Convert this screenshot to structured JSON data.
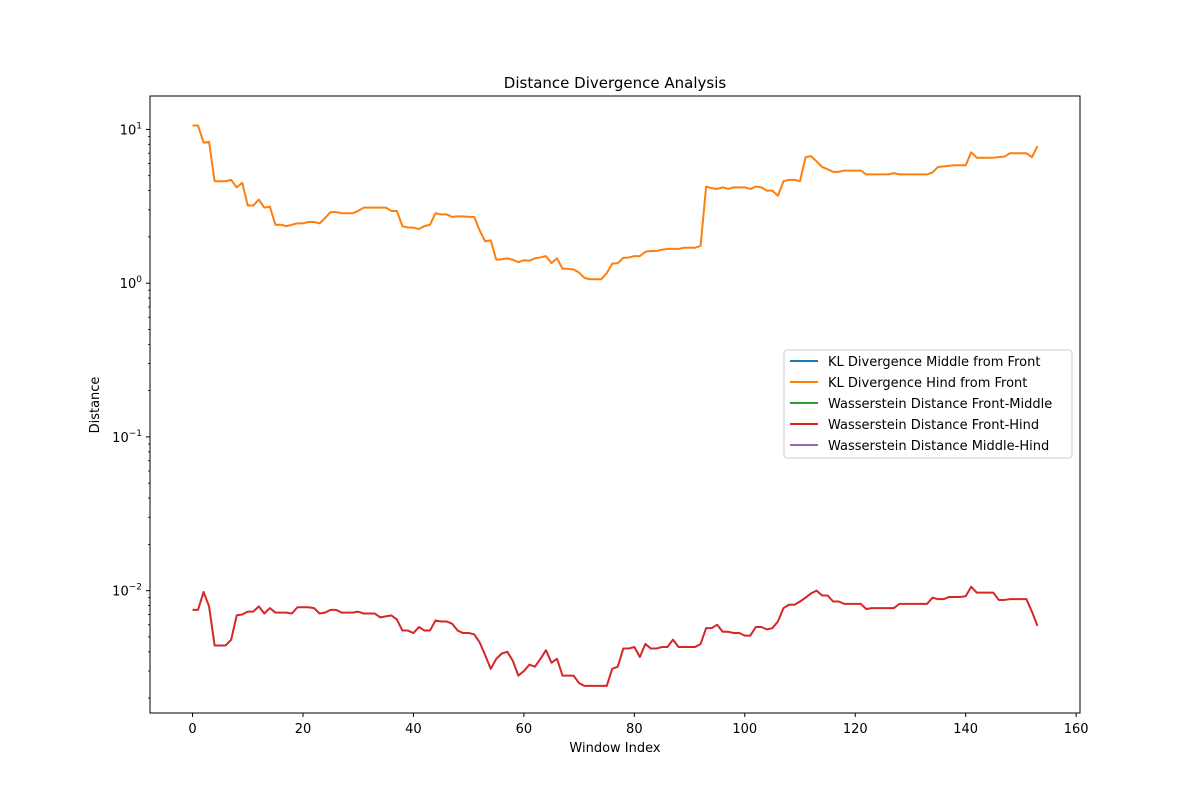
{
  "chart_data": {
    "type": "line",
    "title": "Distance Divergence Analysis",
    "xlabel": "Window Index",
    "ylabel": "Distance",
    "yscale": "log",
    "xlim": [
      -7.7,
      160.7
    ],
    "ylim": [
      0.0016,
      16.5
    ],
    "xticks": [
      0,
      20,
      40,
      60,
      80,
      100,
      120,
      140,
      160
    ],
    "yticks": [
      {
        "value": 0.01,
        "base": "10",
        "exp": "−2"
      },
      {
        "value": 0.1,
        "base": "10",
        "exp": "−1"
      },
      {
        "value": 1,
        "base": "10",
        "exp": "0"
      },
      {
        "value": 10,
        "base": "10",
        "exp": "1"
      }
    ],
    "grid": false,
    "legend_position": "center-right",
    "series": [
      {
        "name": "KL Divergence Middle from Front",
        "color": "#1f77b4",
        "x": [],
        "y": []
      },
      {
        "name": "KL Divergence Hind from Front",
        "color": "#ff7f0e",
        "x": [
          0,
          1,
          2,
          3,
          4,
          5,
          6,
          7,
          8,
          9,
          10,
          11,
          12,
          13,
          14,
          15,
          16,
          17,
          18,
          19,
          20,
          21,
          22,
          23,
          24,
          25,
          26,
          27,
          28,
          29,
          30,
          31,
          32,
          33,
          34,
          35,
          36,
          37,
          38,
          39,
          40,
          41,
          42,
          43,
          44,
          45,
          46,
          47,
          48,
          49,
          50,
          51,
          52,
          53,
          54,
          55,
          56,
          57,
          58,
          59,
          60,
          61,
          62,
          63,
          64,
          65,
          66,
          67,
          68,
          69,
          70,
          71,
          72,
          73,
          74,
          75,
          76,
          77,
          78,
          79,
          80,
          81,
          82,
          83,
          84,
          85,
          86,
          87,
          88,
          89,
          90,
          91,
          92,
          93,
          94,
          95,
          96,
          97,
          98,
          99,
          100,
          101,
          102,
          103,
          104,
          105,
          106,
          107,
          108,
          109,
          110,
          111,
          112,
          113,
          114,
          115,
          116,
          117,
          118,
          119,
          120,
          121,
          122,
          123,
          124,
          125,
          126,
          127,
          128,
          129,
          130,
          131,
          132,
          133,
          134,
          135,
          136,
          137,
          138,
          139,
          140,
          141,
          142,
          143,
          144,
          145,
          146,
          147,
          148,
          149,
          150,
          151,
          152,
          153
        ],
        "y": [
          10.6,
          10.6,
          8.2,
          8.3,
          4.6,
          4.6,
          4.6,
          4.7,
          4.2,
          4.5,
          3.2,
          3.2,
          3.5,
          3.1,
          3.15,
          2.4,
          2.4,
          2.35,
          2.4,
          2.45,
          2.45,
          2.5,
          2.5,
          2.45,
          2.65,
          2.9,
          2.9,
          2.85,
          2.85,
          2.85,
          2.95,
          3.1,
          3.1,
          3.1,
          3.1,
          3.1,
          2.95,
          2.95,
          2.35,
          2.3,
          2.3,
          2.25,
          2.35,
          2.4,
          2.85,
          2.8,
          2.8,
          2.7,
          2.72,
          2.72,
          2.7,
          2.7,
          2.2,
          1.87,
          1.9,
          1.42,
          1.43,
          1.45,
          1.42,
          1.37,
          1.41,
          1.4,
          1.45,
          1.47,
          1.5,
          1.35,
          1.45,
          1.24,
          1.24,
          1.23,
          1.17,
          1.08,
          1.06,
          1.06,
          1.06,
          1.16,
          1.34,
          1.35,
          1.46,
          1.47,
          1.5,
          1.5,
          1.6,
          1.62,
          1.62,
          1.65,
          1.67,
          1.67,
          1.67,
          1.7,
          1.7,
          1.7,
          1.75,
          4.25,
          4.15,
          4.1,
          4.2,
          4.1,
          4.2,
          4.2,
          4.2,
          4.1,
          4.25,
          4.2,
          4.0,
          4.0,
          3.7,
          4.6,
          4.7,
          4.7,
          4.6,
          6.6,
          6.7,
          6.2,
          5.7,
          5.5,
          5.3,
          5.3,
          5.4,
          5.4,
          5.4,
          5.4,
          5.1,
          5.1,
          5.1,
          5.1,
          5.1,
          5.2,
          5.1,
          5.1,
          5.1,
          5.1,
          5.1,
          5.1,
          5.25,
          5.7,
          5.75,
          5.8,
          5.85,
          5.85,
          5.85,
          7.1,
          6.55,
          6.55,
          6.55,
          6.55,
          6.6,
          6.65,
          7.0,
          7.0,
          7.0,
          7.0,
          6.6,
          7.8
        ]
      },
      {
        "name": "Wasserstein Distance Front-Middle",
        "color": "#2ca02c",
        "x": [],
        "y": []
      },
      {
        "name": "Wasserstein Distance Front-Hind",
        "color": "#d62728",
        "x": [
          0,
          1,
          2,
          3,
          4,
          5,
          6,
          7,
          8,
          9,
          10,
          11,
          12,
          13,
          14,
          15,
          16,
          17,
          18,
          19,
          20,
          21,
          22,
          23,
          24,
          25,
          26,
          27,
          28,
          29,
          30,
          31,
          32,
          33,
          34,
          35,
          36,
          37,
          38,
          39,
          40,
          41,
          42,
          43,
          44,
          45,
          46,
          47,
          48,
          49,
          50,
          51,
          52,
          53,
          54,
          55,
          56,
          57,
          58,
          59,
          60,
          61,
          62,
          63,
          64,
          65,
          66,
          67,
          68,
          69,
          70,
          71,
          72,
          73,
          74,
          75,
          76,
          77,
          78,
          79,
          80,
          81,
          82,
          83,
          84,
          85,
          86,
          87,
          88,
          89,
          90,
          91,
          92,
          93,
          94,
          95,
          96,
          97,
          98,
          99,
          100,
          101,
          102,
          103,
          104,
          105,
          106,
          107,
          108,
          109,
          110,
          111,
          112,
          113,
          114,
          115,
          116,
          117,
          118,
          119,
          120,
          121,
          122,
          123,
          124,
          125,
          126,
          127,
          128,
          129,
          130,
          131,
          132,
          133,
          134,
          135,
          136,
          137,
          138,
          139,
          140,
          141,
          142,
          143,
          144,
          145,
          146,
          147,
          148,
          149,
          150,
          151,
          152,
          153
        ],
        "y": [
          0.0075,
          0.0075,
          0.0098,
          0.0079,
          0.0044,
          0.0044,
          0.0044,
          0.0048,
          0.0069,
          0.007,
          0.0073,
          0.0073,
          0.0079,
          0.0071,
          0.0077,
          0.0072,
          0.0072,
          0.0072,
          0.0071,
          0.0078,
          0.0078,
          0.0078,
          0.0077,
          0.0071,
          0.0072,
          0.0075,
          0.0075,
          0.0072,
          0.0072,
          0.0072,
          0.0073,
          0.0071,
          0.0071,
          0.0071,
          0.0067,
          0.0068,
          0.0069,
          0.0065,
          0.0055,
          0.0055,
          0.0053,
          0.0058,
          0.0055,
          0.0055,
          0.0064,
          0.0063,
          0.0063,
          0.0061,
          0.0055,
          0.0053,
          0.0053,
          0.0052,
          0.0046,
          0.0038,
          0.0031,
          0.0036,
          0.0039,
          0.004,
          0.0035,
          0.0028,
          0.003,
          0.0033,
          0.0032,
          0.0036,
          0.0041,
          0.0034,
          0.0036,
          0.0028,
          0.0028,
          0.0028,
          0.0025,
          0.0024,
          0.0024,
          0.0024,
          0.0024,
          0.0024,
          0.0031,
          0.0032,
          0.0042,
          0.0042,
          0.0043,
          0.0037,
          0.0045,
          0.0042,
          0.0042,
          0.0043,
          0.0043,
          0.0048,
          0.0043,
          0.0043,
          0.0043,
          0.0043,
          0.0045,
          0.0057,
          0.0057,
          0.006,
          0.0054,
          0.0054,
          0.0053,
          0.0053,
          0.0051,
          0.0051,
          0.0058,
          0.0058,
          0.0056,
          0.0057,
          0.0063,
          0.0077,
          0.0081,
          0.0081,
          0.0085,
          0.009,
          0.0096,
          0.01,
          0.0093,
          0.0093,
          0.0085,
          0.0085,
          0.0082,
          0.0082,
          0.0082,
          0.0082,
          0.0076,
          0.0077,
          0.0077,
          0.0077,
          0.0077,
          0.0077,
          0.0082,
          0.0082,
          0.0082,
          0.0082,
          0.0082,
          0.0082,
          0.009,
          0.0088,
          0.0088,
          0.0091,
          0.0091,
          0.0091,
          0.0092,
          0.0106,
          0.0097,
          0.0097,
          0.0097,
          0.0097,
          0.0087,
          0.0087,
          0.0088,
          0.0088,
          0.0088,
          0.0088,
          0.0073,
          0.0059
        ]
      },
      {
        "name": "Wasserstein Distance Middle-Hind",
        "color": "#9467bd",
        "x": [],
        "y": []
      }
    ]
  }
}
